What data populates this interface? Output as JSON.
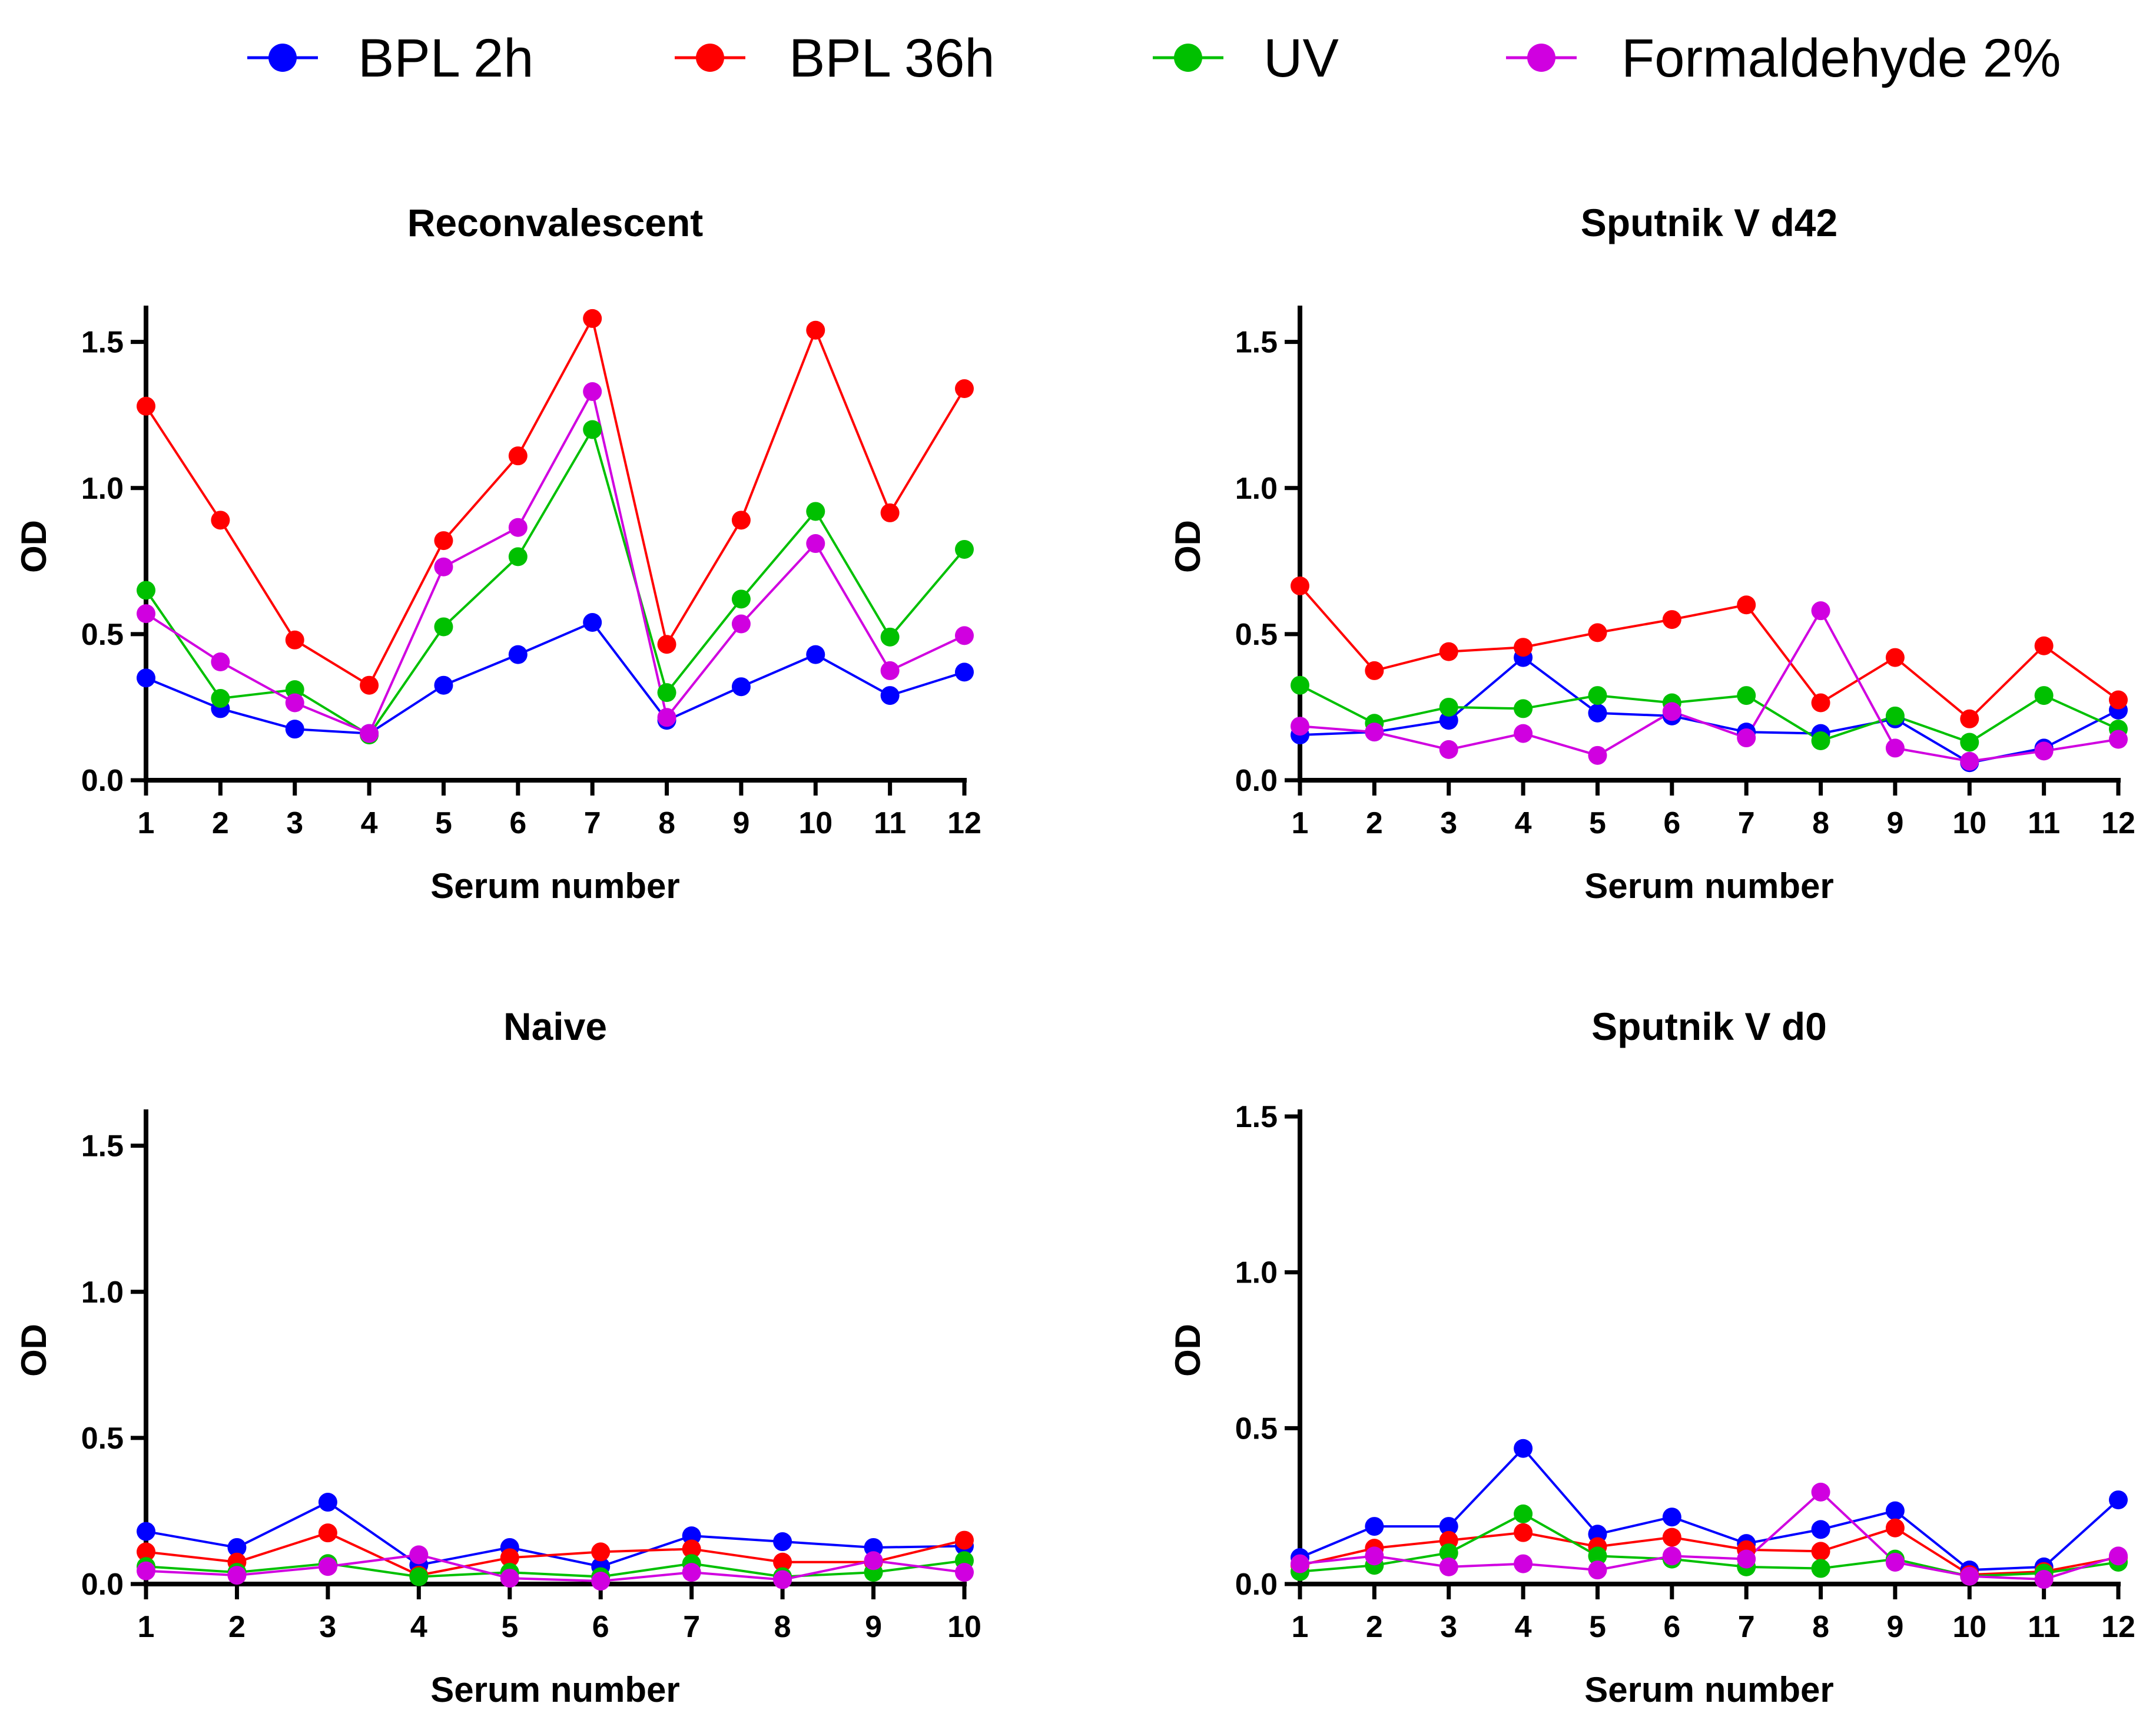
{
  "legend": [
    {
      "name": "BPL 2h",
      "color": "#0000ff"
    },
    {
      "name": "BPL 36h",
      "color": "#ff0000"
    },
    {
      "name": "UV",
      "color": "#00c000"
    },
    {
      "name": "Formaldehyde 2%",
      "color": "#d000e0"
    }
  ],
  "chart_data": [
    {
      "type": "line",
      "title": "Reconvalescent",
      "xlabel": "Serum number",
      "ylabel": "OD",
      "ylim": [
        0,
        1.6
      ],
      "yticks": [
        "0.0",
        "0.5",
        "1.0",
        "1.5"
      ],
      "x": [
        1,
        2,
        3,
        4,
        5,
        6,
        7,
        8,
        9,
        10,
        11,
        12
      ],
      "series": [
        {
          "name": "BPL 2h",
          "values": [
            0.35,
            0.245,
            0.175,
            0.16,
            0.325,
            0.43,
            0.54,
            0.205,
            0.32,
            0.43,
            0.29,
            0.37
          ]
        },
        {
          "name": "BPL 36h",
          "values": [
            1.28,
            0.89,
            0.48,
            0.325,
            0.82,
            1.11,
            1.58,
            0.465,
            0.89,
            1.54,
            0.915,
            1.34
          ]
        },
        {
          "name": "UV",
          "values": [
            0.65,
            0.28,
            0.31,
            0.155,
            0.525,
            0.765,
            1.2,
            0.3,
            0.62,
            0.92,
            0.49,
            0.79
          ]
        },
        {
          "name": "Formaldehyde 2%",
          "values": [
            0.57,
            0.405,
            0.265,
            0.16,
            0.73,
            0.865,
            1.33,
            0.215,
            0.535,
            0.81,
            0.375,
            0.495
          ]
        }
      ]
    },
    {
      "type": "line",
      "title": "Sputnik V d42",
      "xlabel": "Serum number",
      "ylabel": "OD",
      "ylim": [
        0,
        1.6
      ],
      "yticks": [
        "0.0",
        "0.5",
        "1.0",
        "1.5"
      ],
      "x": [
        1,
        2,
        3,
        4,
        5,
        6,
        7,
        8,
        9,
        10,
        11,
        12
      ],
      "series": [
        {
          "name": "BPL 2h",
          "values": [
            0.155,
            0.165,
            0.205,
            0.42,
            0.23,
            0.22,
            0.165,
            0.16,
            0.21,
            0.06,
            0.11,
            0.24
          ]
        },
        {
          "name": "BPL 36h",
          "values": [
            0.665,
            0.375,
            0.44,
            0.455,
            0.505,
            0.55,
            0.6,
            0.265,
            0.42,
            0.21,
            0.46,
            0.275
          ]
        },
        {
          "name": "UV",
          "values": [
            0.325,
            0.195,
            0.25,
            0.245,
            0.29,
            0.265,
            0.29,
            0.135,
            0.22,
            0.13,
            0.29,
            0.175
          ]
        },
        {
          "name": "Formaldehyde 2%",
          "values": [
            0.185,
            0.165,
            0.105,
            0.16,
            0.085,
            0.235,
            0.145,
            0.58,
            0.11,
            0.065,
            0.1,
            0.14
          ]
        }
      ]
    },
    {
      "type": "line",
      "title": "Naive",
      "xlabel": "Serum number",
      "ylabel": "OD",
      "ylim": [
        0,
        1.6
      ],
      "yticks": [
        "0.0",
        "0.5",
        "1.0",
        "1.5"
      ],
      "x": [
        1,
        2,
        3,
        4,
        5,
        6,
        7,
        8,
        9,
        10
      ],
      "series": [
        {
          "name": "BPL 2h",
          "values": [
            0.18,
            0.125,
            0.28,
            0.065,
            0.125,
            0.06,
            0.165,
            0.145,
            0.125,
            0.13
          ]
        },
        {
          "name": "BPL 36h",
          "values": [
            0.11,
            0.075,
            0.175,
            0.03,
            0.09,
            0.11,
            0.12,
            0.075,
            0.075,
            0.15
          ]
        },
        {
          "name": "UV",
          "values": [
            0.06,
            0.04,
            0.07,
            0.025,
            0.04,
            0.025,
            0.07,
            0.025,
            0.04,
            0.08
          ]
        },
        {
          "name": "Formaldehyde 2%",
          "values": [
            0.045,
            0.03,
            0.06,
            0.1,
            0.02,
            0.01,
            0.04,
            0.015,
            0.08,
            0.04
          ]
        }
      ]
    },
    {
      "type": "line",
      "title": "Sputnik V d0",
      "xlabel": "Serum number",
      "ylabel": "OD",
      "ylim": [
        0,
        1.5
      ],
      "yticks": [
        "0.0",
        "0.5",
        "1.0",
        "1.5"
      ],
      "x": [
        1,
        2,
        3,
        4,
        5,
        6,
        7,
        8,
        9,
        10,
        11,
        12
      ],
      "series": [
        {
          "name": "BPL 2h",
          "values": [
            0.085,
            0.185,
            0.185,
            0.435,
            0.16,
            0.215,
            0.13,
            0.175,
            0.235,
            0.045,
            0.055,
            0.27
          ]
        },
        {
          "name": "BPL 36h",
          "values": [
            0.06,
            0.115,
            0.14,
            0.165,
            0.12,
            0.15,
            0.11,
            0.105,
            0.18,
            0.03,
            0.04,
            0.085
          ]
        },
        {
          "name": "UV",
          "values": [
            0.04,
            0.06,
            0.1,
            0.225,
            0.09,
            0.08,
            0.055,
            0.05,
            0.08,
            0.025,
            0.035,
            0.07
          ]
        },
        {
          "name": "Formaldehyde 2%",
          "values": [
            0.065,
            0.09,
            0.055,
            0.065,
            0.045,
            0.09,
            0.08,
            0.295,
            0.07,
            0.025,
            0.015,
            0.09
          ]
        }
      ]
    }
  ]
}
